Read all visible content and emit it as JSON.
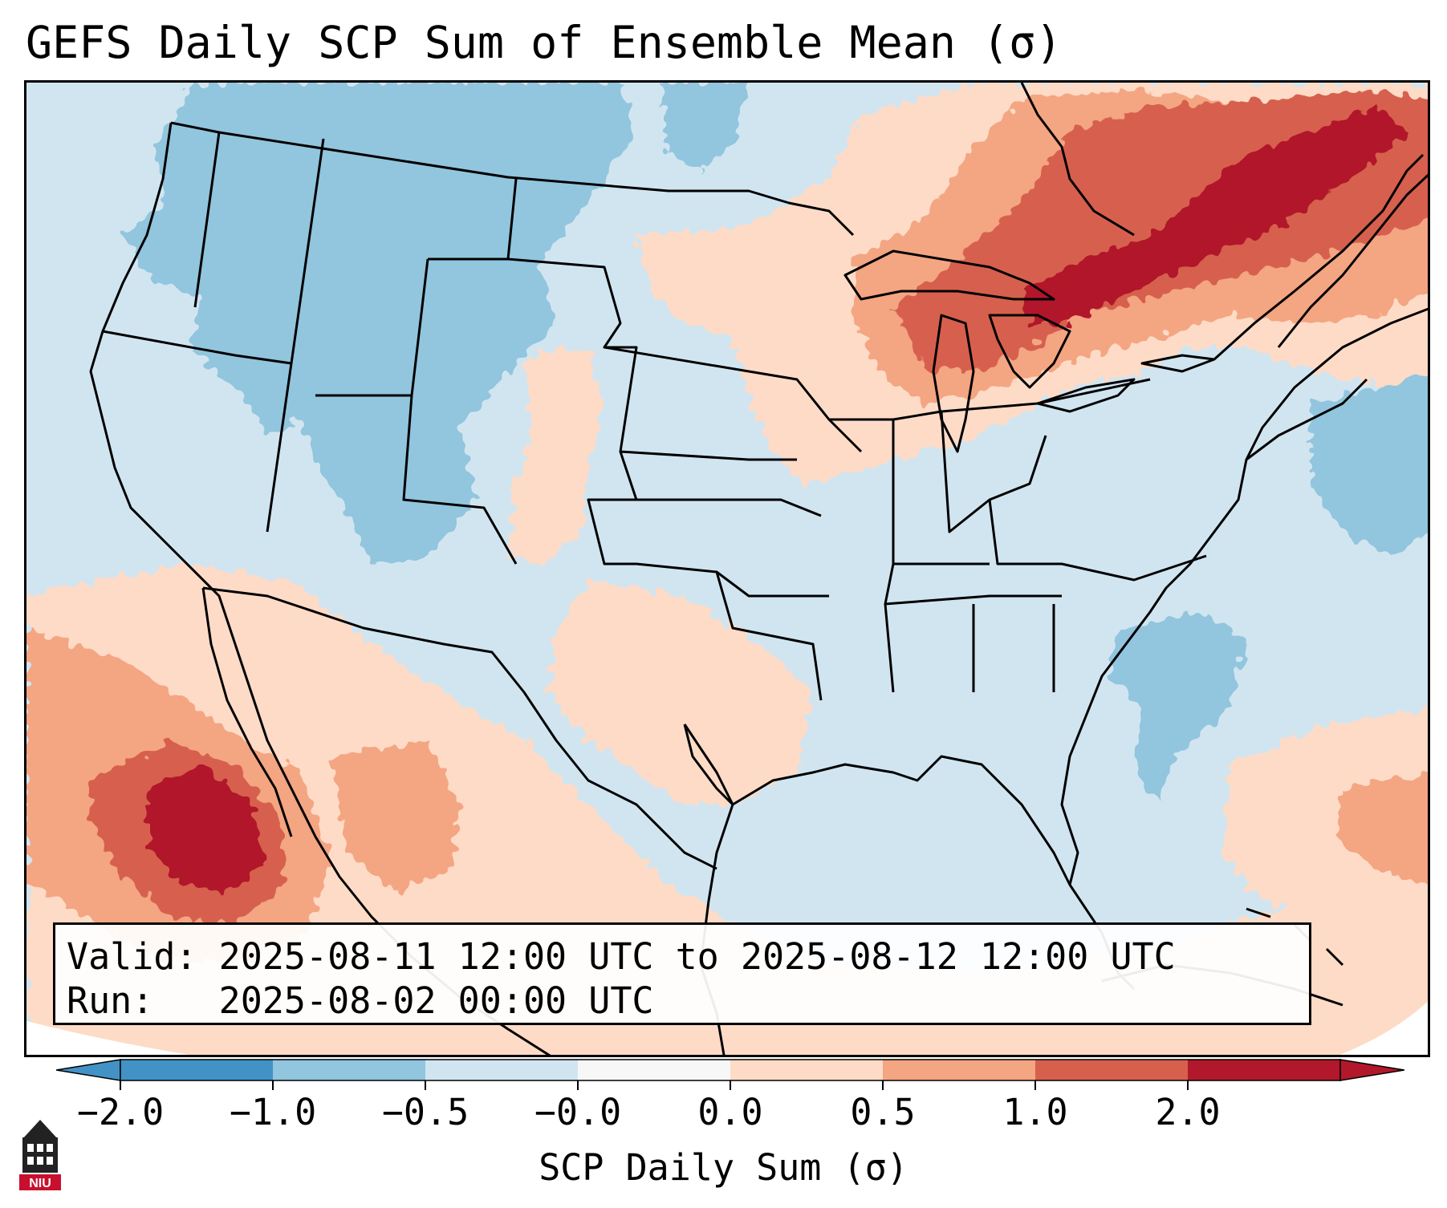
{
  "title": "GEFS Daily SCP Sum of Ensemble Mean (σ)",
  "info": {
    "valid_label": "Valid:",
    "valid_value": "2025-08-11 12:00 UTC to 2025-08-12 12:00 UTC",
    "run_label": "Run:",
    "run_value": "2025-08-02 00:00 UTC"
  },
  "colorbar": {
    "label": "SCP Daily Sum (σ)",
    "ticks": [
      "−2.0",
      "−1.0",
      "−0.5",
      "−0.0",
      "0.0",
      "0.5",
      "1.0",
      "2.0"
    ],
    "colors": [
      "#4292c6",
      "#92c5de",
      "#d1e5f0",
      "#f7f7f7",
      "#fddbc7",
      "#f4a582",
      "#d6604d",
      "#b2182b"
    ]
  },
  "logo": {
    "text": "NIU",
    "icon": "niu-university-logo"
  },
  "map": {
    "region": "Continental United States",
    "field": "SCP Daily Sum anomaly",
    "colors": {
      "strong_neg": "#92c5de",
      "weak_neg": "#d1e5f0",
      "weak_pos": "#fddbc7",
      "mod_pos": "#f4a582",
      "strong_pos": "#d6604d",
      "extreme_pos": "#b2182b"
    }
  }
}
